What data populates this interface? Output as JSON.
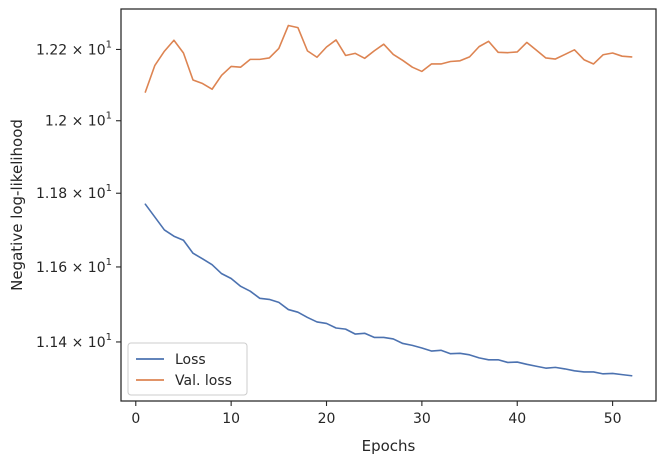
{
  "chart_data": {
    "type": "line",
    "xlabel": "Epochs",
    "ylabel": "Negative log-likelihood",
    "y_scale": "log",
    "xlim": [
      -1.55,
      54.55
    ],
    "ylim": [
      11.245,
      12.315
    ],
    "grid": false,
    "legend_position": "lower-left",
    "x_ticks": [
      0,
      10,
      20,
      30,
      40,
      50
    ],
    "x_tick_labels": [
      "0",
      "10",
      "20",
      "30",
      "40",
      "50"
    ],
    "y_ticks": [
      11.4,
      11.6,
      11.8,
      12.0,
      12.2
    ],
    "y_tick_labels": [
      {
        "mant": "1.14",
        "exp": "1"
      },
      {
        "mant": "1.16",
        "exp": "1"
      },
      {
        "mant": "1.18",
        "exp": "1"
      },
      {
        "mant": "1.2",
        "exp": "1"
      },
      {
        "mant": "1.22",
        "exp": "1"
      }
    ],
    "x": [
      1,
      2,
      3,
      4,
      5,
      6,
      7,
      8,
      9,
      10,
      11,
      12,
      13,
      14,
      15,
      16,
      17,
      18,
      19,
      20,
      21,
      22,
      23,
      24,
      25,
      26,
      27,
      28,
      29,
      30,
      31,
      32,
      33,
      34,
      35,
      36,
      37,
      38,
      39,
      40,
      41,
      42,
      43,
      44,
      45,
      46,
      47,
      48,
      49,
      50,
      51,
      52
    ],
    "series": [
      {
        "name": "Loss",
        "color": "#4c72b0",
        "values": [
          11.77,
          11.735,
          11.7,
          11.683,
          11.672,
          11.637,
          11.622,
          11.606,
          11.582,
          11.569,
          11.548,
          11.535,
          11.516,
          11.513,
          11.505,
          11.486,
          11.479,
          11.465,
          11.453,
          11.449,
          11.437,
          11.434,
          11.421,
          11.423,
          11.412,
          11.412,
          11.408,
          11.396,
          11.391,
          11.384,
          11.376,
          11.378,
          11.369,
          11.37,
          11.366,
          11.358,
          11.353,
          11.353,
          11.346,
          11.347,
          11.341,
          11.336,
          11.331,
          11.333,
          11.329,
          11.324,
          11.321,
          11.321,
          11.316,
          11.317,
          11.314,
          11.311
        ]
      },
      {
        "name": "Val. loss",
        "color": "#dd8452",
        "values": [
          12.08,
          12.155,
          12.195,
          12.226,
          12.19,
          12.114,
          12.104,
          12.088,
          12.127,
          12.152,
          12.15,
          12.172,
          12.172,
          12.176,
          12.203,
          12.268,
          12.262,
          12.196,
          12.178,
          12.207,
          12.227,
          12.183,
          12.189,
          12.175,
          12.196,
          12.215,
          12.186,
          12.169,
          12.15,
          12.138,
          12.159,
          12.159,
          12.166,
          12.168,
          12.179,
          12.208,
          12.223,
          12.192,
          12.191,
          12.193,
          12.22,
          12.198,
          12.176,
          12.173,
          12.186,
          12.199,
          12.171,
          12.159,
          12.185,
          12.19,
          12.181,
          12.179
        ]
      }
    ]
  }
}
